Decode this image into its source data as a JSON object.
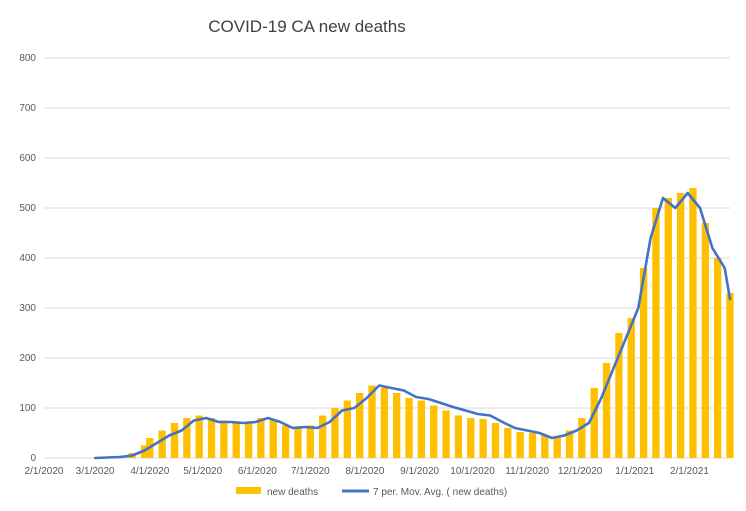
{
  "chart_data": {
    "type": "bar",
    "title": "COVID-19 CA new deaths",
    "xlabel": "",
    "ylabel": "",
    "ylim": [
      0,
      800
    ],
    "y_ticks": [
      0,
      100,
      200,
      300,
      400,
      500,
      600,
      700,
      800
    ],
    "x_ticks": [
      "2/1/2020",
      "3/1/2020",
      "4/1/2020",
      "5/1/2020",
      "6/1/2020",
      "7/1/2020",
      "8/1/2020",
      "9/1/2020",
      "10/1/2020",
      "11/1/2020",
      "12/1/2020",
      "1/1/2021",
      "2/1/2021"
    ],
    "x_range": [
      "2/1/2020",
      "2/24/2021"
    ],
    "grid": "horizontal",
    "legend_position": "bottom",
    "series": [
      {
        "name": "new deaths",
        "type": "bar",
        "color": "#FFC000",
        "points": [
          [
            "3/1/2020",
            0
          ],
          [
            "3/8/2020",
            1
          ],
          [
            "3/15/2020",
            3
          ],
          [
            "3/22/2020",
            10
          ],
          [
            "3/29/2020",
            25
          ],
          [
            "4/1/2020",
            40
          ],
          [
            "4/8/2020",
            55
          ],
          [
            "4/15/2020",
            70
          ],
          [
            "4/22/2020",
            80
          ],
          [
            "4/29/2020",
            85
          ],
          [
            "5/6/2020",
            80
          ],
          [
            "5/13/2020",
            75
          ],
          [
            "5/20/2020",
            72
          ],
          [
            "5/27/2020",
            70
          ],
          [
            "6/3/2020",
            80
          ],
          [
            "6/10/2020",
            75
          ],
          [
            "6/17/2020",
            65
          ],
          [
            "6/24/2020",
            62
          ],
          [
            "7/1/2020",
            65
          ],
          [
            "7/8/2020",
            85
          ],
          [
            "7/15/2020",
            100
          ],
          [
            "7/22/2020",
            115
          ],
          [
            "7/29/2020",
            130
          ],
          [
            "8/5/2020",
            145
          ],
          [
            "8/12/2020",
            140
          ],
          [
            "8/19/2020",
            130
          ],
          [
            "8/26/2020",
            120
          ],
          [
            "9/2/2020",
            115
          ],
          [
            "9/9/2020",
            105
          ],
          [
            "9/16/2020",
            95
          ],
          [
            "9/23/2020",
            85
          ],
          [
            "9/30/2020",
            80
          ],
          [
            "10/7/2020",
            78
          ],
          [
            "10/14/2020",
            70
          ],
          [
            "10/21/2020",
            60
          ],
          [
            "10/28/2020",
            52
          ],
          [
            "11/4/2020",
            50
          ],
          [
            "11/11/2020",
            45
          ],
          [
            "11/18/2020",
            42
          ],
          [
            "11/25/2020",
            55
          ],
          [
            "12/2/2020",
            80
          ],
          [
            "12/9/2020",
            140
          ],
          [
            "12/16/2020",
            190
          ],
          [
            "12/23/2020",
            250
          ],
          [
            "12/30/2020",
            280
          ],
          [
            "1/6/2021",
            380
          ],
          [
            "1/13/2021",
            500
          ],
          [
            "1/20/2021",
            520
          ],
          [
            "1/27/2021",
            530
          ],
          [
            "2/3/2021",
            540
          ],
          [
            "2/10/2021",
            470
          ],
          [
            "2/17/2021",
            400
          ],
          [
            "2/24/2021",
            330
          ]
        ]
      },
      {
        "name": "7 per. Mov. Avg. ( new deaths)",
        "type": "line",
        "color": "#4472C4",
        "points": [
          [
            "3/1/2020",
            0
          ],
          [
            "3/8/2020",
            1
          ],
          [
            "3/15/2020",
            2
          ],
          [
            "3/22/2020",
            5
          ],
          [
            "3/29/2020",
            15
          ],
          [
            "4/5/2020",
            30
          ],
          [
            "4/12/2020",
            45
          ],
          [
            "4/19/2020",
            55
          ],
          [
            "4/26/2020",
            75
          ],
          [
            "5/3/2020",
            80
          ],
          [
            "5/10/2020",
            72
          ],
          [
            "5/17/2020",
            72
          ],
          [
            "5/24/2020",
            70
          ],
          [
            "5/31/2020",
            72
          ],
          [
            "6/7/2020",
            80
          ],
          [
            "6/14/2020",
            72
          ],
          [
            "6/21/2020",
            60
          ],
          [
            "6/28/2020",
            62
          ],
          [
            "7/5/2020",
            60
          ],
          [
            "7/12/2020",
            72
          ],
          [
            "7/19/2020",
            95
          ],
          [
            "7/26/2020",
            100
          ],
          [
            "8/2/2020",
            120
          ],
          [
            "8/9/2020",
            145
          ],
          [
            "8/16/2020",
            140
          ],
          [
            "8/23/2020",
            135
          ],
          [
            "8/30/2020",
            122
          ],
          [
            "9/6/2020",
            118
          ],
          [
            "9/13/2020",
            110
          ],
          [
            "9/20/2020",
            102
          ],
          [
            "9/27/2020",
            95
          ],
          [
            "10/4/2020",
            88
          ],
          [
            "10/11/2020",
            85
          ],
          [
            "10/18/2020",
            72
          ],
          [
            "10/25/2020",
            60
          ],
          [
            "11/1/2020",
            55
          ],
          [
            "11/8/2020",
            50
          ],
          [
            "11/15/2020",
            40
          ],
          [
            "11/22/2020",
            45
          ],
          [
            "11/29/2020",
            55
          ],
          [
            "12/6/2020",
            70
          ],
          [
            "12/13/2020",
            120
          ],
          [
            "12/20/2020",
            180
          ],
          [
            "12/27/2020",
            240
          ],
          [
            "1/3/2021",
            300
          ],
          [
            "1/10/2021",
            440
          ],
          [
            "1/17/2021",
            520
          ],
          [
            "1/24/2021",
            500
          ],
          [
            "1/31/2021",
            530
          ],
          [
            "2/7/2021",
            500
          ],
          [
            "2/14/2021",
            420
          ],
          [
            "2/21/2021",
            380
          ],
          [
            "2/24/2021",
            318
          ]
        ]
      }
    ]
  }
}
